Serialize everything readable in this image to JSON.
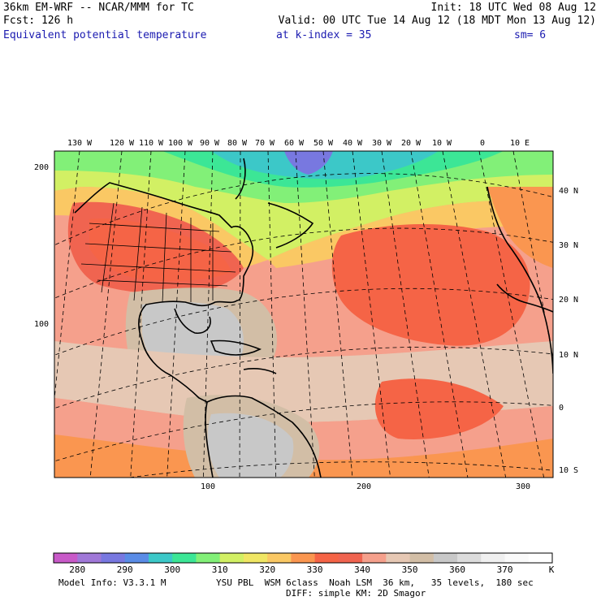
{
  "header": {
    "line1_left": "36km EM-WRF -- NCAR/MMM for TC",
    "line1_right": "Init: 18 UTC Wed 08 Aug 12",
    "line2_left": "Fcst: 126 h",
    "line2_right": "Valid: 00 UTC Tue 14 Aug 12 (18 MDT Mon 13 Aug 12)",
    "field": "Equivalent potential temperature",
    "level": "at k-index = 35",
    "smoothing": "sm= 6"
  },
  "map": {
    "top_lon_labels": [
      "130 W",
      "120 W",
      "110 W",
      "100 W",
      "90 W",
      "80 W",
      "70 W",
      "60 W",
      "50 W",
      "40 W",
      "30 W",
      "20 W",
      "10 W",
      "0",
      "10 E"
    ],
    "right_lat_labels": [
      "40 N",
      "30 N",
      "20 N",
      "10 N",
      "0",
      "10 S"
    ],
    "left_grid_labels": [
      "200",
      "100"
    ],
    "bottom_grid_labels": [
      "100",
      "200",
      "300"
    ]
  },
  "colorbar": {
    "values": [
      "280",
      "290",
      "300",
      "310",
      "320",
      "330",
      "340",
      "350",
      "360",
      "370"
    ],
    "unit": "K",
    "colors": [
      "#c85ac8",
      "#a078d8",
      "#7878e0",
      "#5a8ce6",
      "#3cc8c8",
      "#3ce696",
      "#82f078",
      "#d2f064",
      "#f0e664",
      "#fac864",
      "#fa9650",
      "#f56446",
      "#f06450",
      "#f5a08c",
      "#e6c8b4",
      "#d2bea6",
      "#c8c8c8",
      "#dcdcdc",
      "#f0f0f0",
      "#fafafa",
      "#ffffff"
    ]
  },
  "footer": {
    "model_info": "Model Info: V3.3.1 M",
    "physics": "YSU PBL  WSM 6class  Noah LSM  36 km,   35 levels,  180 sec",
    "diffusion": "DIFF: simple KM: 2D Smagor"
  },
  "colors": {
    "title_blue": "#1a1ab0",
    "frame": "#000000"
  }
}
